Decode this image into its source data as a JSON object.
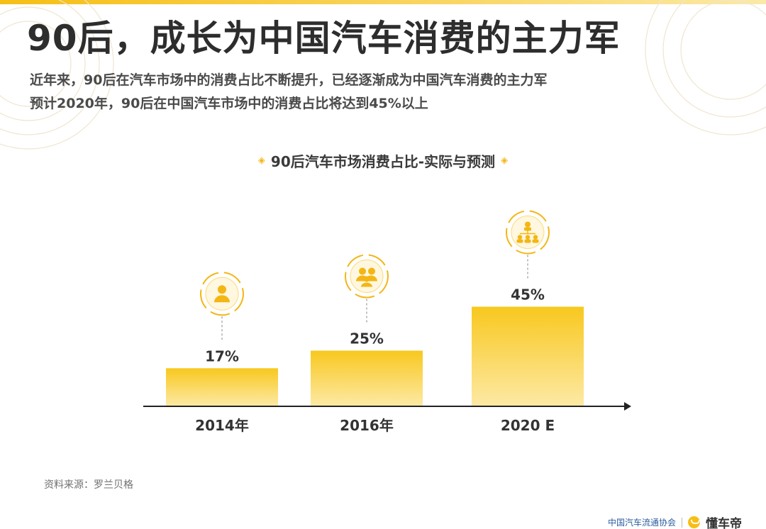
{
  "header": {
    "title": "90后，成长为中国汽车消费的主力军",
    "subtitle_lines": [
      "近年来，90后在汽车市场中的消费占比不断提升，已经逐渐成为中国汽车消费的主力军",
      "预计2020年，90后在中国汽车市场中的消费占比将达到45%以上"
    ]
  },
  "chart_data": {
    "type": "bar",
    "title": "90后汽车市场消费占比-实际与预测",
    "categories": [
      "2014年",
      "2016年",
      "2020 E"
    ],
    "values": [
      17,
      25,
      45
    ],
    "value_labels": [
      "17%",
      "25%",
      "45%"
    ],
    "icons": [
      "person-icon",
      "group-icon",
      "network-icon"
    ],
    "xlabel": "",
    "ylabel": "",
    "ylim": [
      0,
      50
    ],
    "grid": false,
    "legend": "none",
    "colors": {
      "bar_top": "#f8c81e",
      "bar_bottom": "#fde9a4",
      "accent": "#f3b614",
      "axis": "#222222"
    }
  },
  "source": {
    "text": "资料来源：罗兰贝格"
  },
  "footer": {
    "org": "中国汽车流通协会",
    "brand": "懂车帝"
  },
  "theme": {
    "accent": "#f6bf16",
    "title_color": "#2d2d2d"
  }
}
